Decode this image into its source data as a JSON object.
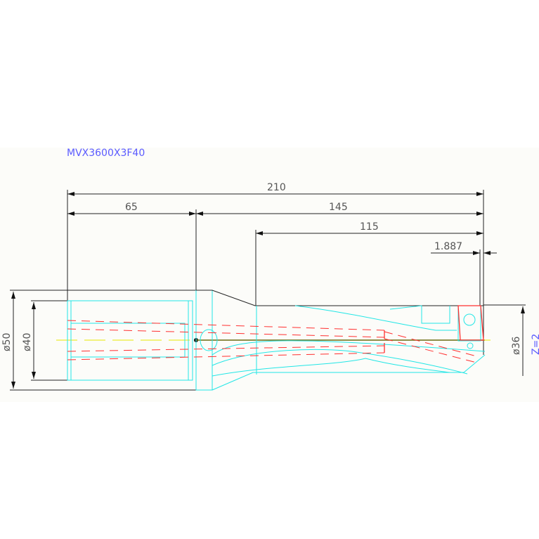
{
  "drawing": {
    "part_number": "MVX3600X3F40",
    "teeth_label": "Z=2",
    "dimensions": {
      "overall_length": "210",
      "shank_length": "65",
      "body_length": "145",
      "flute_length": "115",
      "offset": "1.887",
      "shank_diameter": "ø50",
      "flange_diameter": "ø40",
      "cutting_diameter": "ø36"
    },
    "colors": {
      "outline": "#22e6e6",
      "hidden": "#ff3030",
      "dimension": "#222222",
      "label": "#5a5aff",
      "centerline": "#e8e800"
    }
  }
}
